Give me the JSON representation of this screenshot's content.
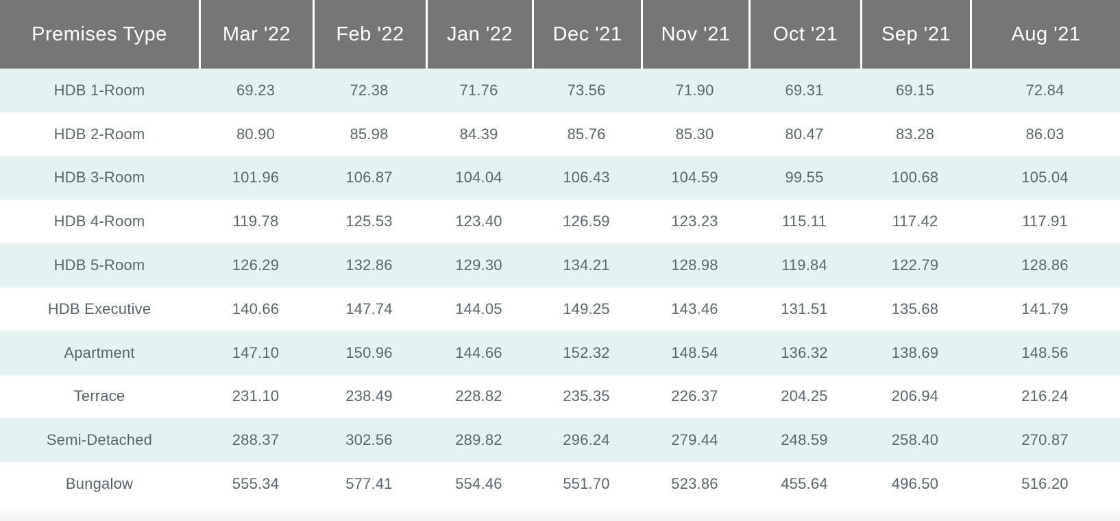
{
  "chart_data": {
    "type": "table",
    "columns": [
      "Premises Type",
      "Mar '22",
      "Feb '22",
      "Jan '22",
      "Dec '21",
      "Nov '21",
      "Oct '21",
      "Sep '21",
      "Aug '21"
    ],
    "rows": [
      {
        "label": "HDB 1-Room",
        "values": [
          "69.23",
          "72.38",
          "71.76",
          "73.56",
          "71.90",
          "69.31",
          "69.15",
          "72.84"
        ]
      },
      {
        "label": "HDB 2-Room",
        "values": [
          "80.90",
          "85.98",
          "84.39",
          "85.76",
          "85.30",
          "80.47",
          "83.28",
          "86.03"
        ]
      },
      {
        "label": "HDB 3-Room",
        "values": [
          "101.96",
          "106.87",
          "104.04",
          "106.43",
          "104.59",
          "99.55",
          "100.68",
          "105.04"
        ]
      },
      {
        "label": "HDB 4-Room",
        "values": [
          "119.78",
          "125.53",
          "123.40",
          "126.59",
          "123.23",
          "115.11",
          "117.42",
          "117.91"
        ]
      },
      {
        "label": "HDB 5-Room",
        "values": [
          "126.29",
          "132.86",
          "129.30",
          "134.21",
          "128.98",
          "119.84",
          "122.79",
          "128.86"
        ]
      },
      {
        "label": "HDB Executive",
        "values": [
          "140.66",
          "147.74",
          "144.05",
          "149.25",
          "143.46",
          "131.51",
          "135.68",
          "141.79"
        ]
      },
      {
        "label": "Apartment",
        "values": [
          "147.10",
          "150.96",
          "144.66",
          "152.32",
          "148.54",
          "136.32",
          "138.69",
          "148.56"
        ]
      },
      {
        "label": "Terrace",
        "values": [
          "231.10",
          "238.49",
          "228.82",
          "235.35",
          "226.37",
          "204.25",
          "206.94",
          "216.24"
        ]
      },
      {
        "label": "Semi-Detached",
        "values": [
          "288.37",
          "302.56",
          "289.82",
          "296.24",
          "279.44",
          "248.59",
          "258.40",
          "270.87"
        ]
      },
      {
        "label": "Bungalow",
        "values": [
          "555.34",
          "577.41",
          "554.46",
          "551.70",
          "523.86",
          "455.64",
          "496.50",
          "516.20"
        ]
      }
    ]
  },
  "styles": {
    "header_background": "#767676",
    "header_text": "#ffffff",
    "alt_row_background": "#e5f2f2",
    "plain_row_background": "#ffffff",
    "cell_text": "#5a676b",
    "header_separator": "#ffffff"
  }
}
